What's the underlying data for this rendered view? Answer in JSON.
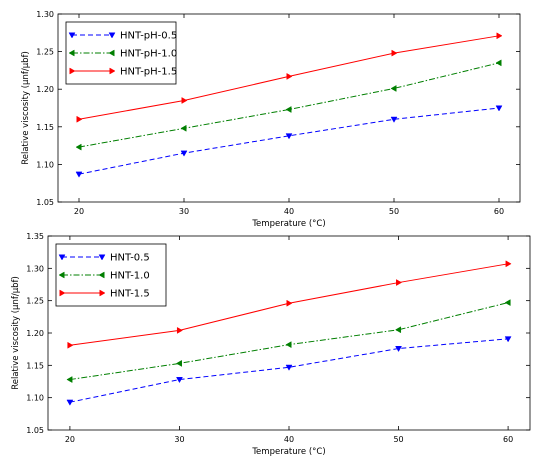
{
  "chart_data": [
    {
      "type": "line",
      "xlabel": "Temperature (°C)",
      "ylabel": "Relative viscosity (μnf/μbf)",
      "x": [
        20,
        30,
        40,
        50,
        60
      ],
      "xlim": [
        18,
        62
      ],
      "ylim": [
        1.05,
        1.3
      ],
      "xticks": [
        "20",
        "30",
        "40",
        "50",
        "60"
      ],
      "yticks": [
        "1.05",
        "1.10",
        "1.15",
        "1.20",
        "1.25",
        "1.30"
      ],
      "grid": false,
      "legend_position": "top-left",
      "series": [
        {
          "name": "HNT-pH-0.5",
          "values": [
            1.087,
            1.115,
            1.138,
            1.16,
            1.175
          ],
          "color": "#0000ff",
          "linestyle": "dashed",
          "marker": "triangle-down"
        },
        {
          "name": "HNT-pH-1.0",
          "values": [
            1.123,
            1.148,
            1.173,
            1.201,
            1.235
          ],
          "color": "#007f00",
          "linestyle": "dashdot",
          "marker": "triangle-left"
        },
        {
          "name": "HNT-pH-1.5",
          "values": [
            1.16,
            1.185,
            1.217,
            1.248,
            1.271
          ],
          "color": "#ff0000",
          "linestyle": "solid",
          "marker": "triangle-right"
        }
      ]
    },
    {
      "type": "line",
      "xlabel": "Temperature (°C)",
      "ylabel": "Relative viscosity (μnf/μbf)",
      "x": [
        20,
        30,
        40,
        50,
        60
      ],
      "xlim": [
        18,
        62
      ],
      "ylim": [
        1.05,
        1.35
      ],
      "xticks": [
        "20",
        "30",
        "40",
        "50",
        "60"
      ],
      "yticks": [
        "1.05",
        "1.10",
        "1.15",
        "1.20",
        "1.25",
        "1.30",
        "1.35"
      ],
      "grid": false,
      "legend_position": "top-left",
      "series": [
        {
          "name": "HNT-0.5",
          "values": [
            1.093,
            1.128,
            1.147,
            1.176,
            1.191
          ],
          "color": "#0000ff",
          "linestyle": "dashed",
          "marker": "triangle-down"
        },
        {
          "name": "HNT-1.0",
          "values": [
            1.128,
            1.153,
            1.182,
            1.205,
            1.247
          ],
          "color": "#007f00",
          "linestyle": "dashdot",
          "marker": "triangle-left"
        },
        {
          "name": "HNT-1.5",
          "values": [
            1.181,
            1.204,
            1.246,
            1.278,
            1.307
          ],
          "color": "#ff0000",
          "linestyle": "solid",
          "marker": "triangle-right"
        }
      ]
    }
  ]
}
